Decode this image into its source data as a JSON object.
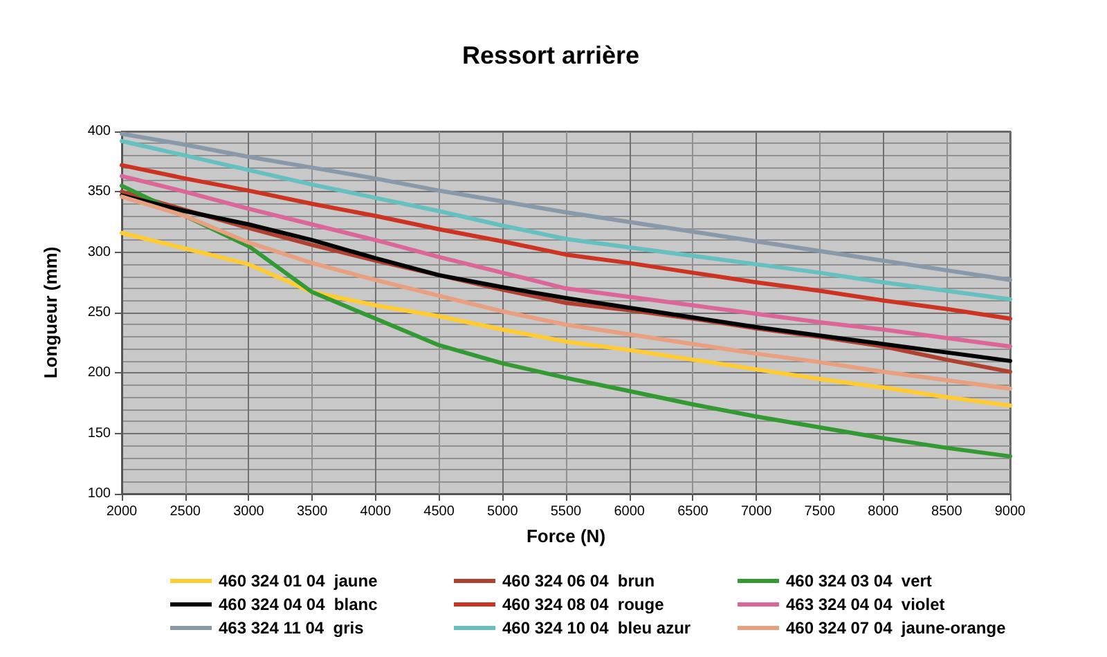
{
  "chart_data": {
    "type": "line",
    "title": "Ressort arrière",
    "xlabel": "Force (N)",
    "ylabel": "Longueur (mm)",
    "x": [
      2000,
      2500,
      3000,
      3500,
      4000,
      4500,
      5000,
      5500,
      6000,
      6500,
      7000,
      7500,
      8000,
      8500,
      9000
    ],
    "series": [
      {
        "name": "460 324 01 04  jaune",
        "color": "#ffcc33",
        "values": [
          316,
          303,
          290,
          267,
          256,
          247,
          236,
          226,
          219,
          211,
          203,
          195,
          188,
          180,
          173
        ]
      },
      {
        "name": "460 324 06 04  brun",
        "color": "#b04030",
        "values": [
          350,
          335,
          320,
          306,
          293,
          281,
          269,
          258,
          252,
          245,
          237,
          230,
          222,
          211,
          201
        ]
      },
      {
        "name": "460 324 03 04  vert",
        "color": "#339933",
        "values": [
          355,
          330,
          305,
          267,
          245,
          223,
          208,
          196,
          185,
          174,
          164,
          155,
          146,
          138,
          131
        ]
      },
      {
        "name": "460 324 04 04  blanc",
        "color": "#000000",
        "values": [
          347,
          334,
          323,
          310,
          295,
          281,
          271,
          262,
          254,
          246,
          238,
          231,
          224,
          217,
          210
        ]
      },
      {
        "name": "460 324 08 04  rouge",
        "color": "#cc3322",
        "values": [
          372,
          361,
          351,
          340,
          330,
          319,
          309,
          298,
          291,
          283,
          275,
          268,
          260,
          253,
          245
        ]
      },
      {
        "name": "463 324 04 04  violet",
        "color": "#dd6699",
        "values": [
          363,
          350,
          336,
          323,
          310,
          296,
          283,
          270,
          263,
          256,
          249,
          242,
          236,
          229,
          222
        ]
      },
      {
        "name": "463 324 11 04  gris",
        "color": "#8899aa",
        "values": [
          398,
          389,
          379,
          370,
          361,
          351,
          342,
          333,
          325,
          317,
          309,
          301,
          293,
          285,
          277
        ]
      },
      {
        "name": "460 324 10 04  bleu azur",
        "color": "#66c0c0",
        "values": [
          392,
          380,
          368,
          356,
          345,
          334,
          322,
          311,
          304,
          297,
          290,
          283,
          275,
          268,
          261
        ]
      },
      {
        "name": "460 324 07 04  jaune-orange",
        "color": "#e8a080",
        "values": [
          346,
          330,
          308,
          291,
          277,
          264,
          251,
          240,
          232,
          224,
          216,
          209,
          201,
          194,
          187
        ]
      }
    ],
    "xlim": [
      2000,
      9000
    ],
    "ylim": [
      100,
      400
    ],
    "xticks": [
      2000,
      2500,
      3000,
      3500,
      4000,
      4500,
      5000,
      5500,
      6000,
      6500,
      7000,
      7500,
      8000,
      8500,
      9000
    ],
    "yticks": [
      100,
      150,
      200,
      250,
      300,
      350,
      400
    ],
    "grid": true,
    "legend": "bottom",
    "marker": "none"
  }
}
